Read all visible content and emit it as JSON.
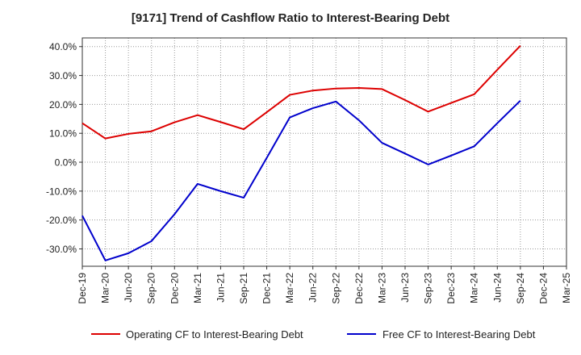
{
  "chart_data": {
    "type": "line",
    "title": "[9171]  Trend of Cashflow Ratio to Interest-Bearing Debt",
    "x": [
      "Dec-19",
      "Mar-20",
      "Jun-20",
      "Sep-20",
      "Dec-20",
      "Mar-21",
      "Jun-21",
      "Sep-21",
      "Dec-21",
      "Mar-22",
      "Jun-22",
      "Sep-22",
      "Dec-22",
      "Mar-23",
      "Jun-23",
      "Sep-23",
      "Dec-23",
      "Mar-24",
      "Jun-24",
      "Sep-24",
      "Dec-24",
      "Mar-25"
    ],
    "yticks": [
      "40.0%",
      "30.0%",
      "20.0%",
      "10.0%",
      "0.0%",
      "-10.0%",
      "-20.0%",
      "-30.0%"
    ],
    "ylim": [
      -36,
      43
    ],
    "grid": true,
    "legend_position": "bottom",
    "series": [
      {
        "name": "Operating CF to Interest-Bearing Debt",
        "color": "#dd0000",
        "values": [
          13.5,
          8.2,
          9.8,
          10.7,
          13.8,
          16.3,
          13.9,
          11.4,
          17.3,
          23.3,
          24.8,
          25.5,
          25.7,
          25.3,
          21.5,
          17.5,
          20.5,
          23.5,
          32.0,
          40.3,
          null,
          null
        ]
      },
      {
        "name": "Free CF to Interest-Bearing Debt",
        "color": "#0000cc",
        "values": [
          -18.5,
          -34.0,
          -31.5,
          -27.3,
          -18.0,
          -7.5,
          -10.0,
          -12.3,
          1.5,
          15.5,
          18.7,
          21.0,
          14.5,
          6.7,
          3.0,
          -0.8,
          2.3,
          5.5,
          13.5,
          21.3,
          null,
          null
        ]
      }
    ]
  }
}
